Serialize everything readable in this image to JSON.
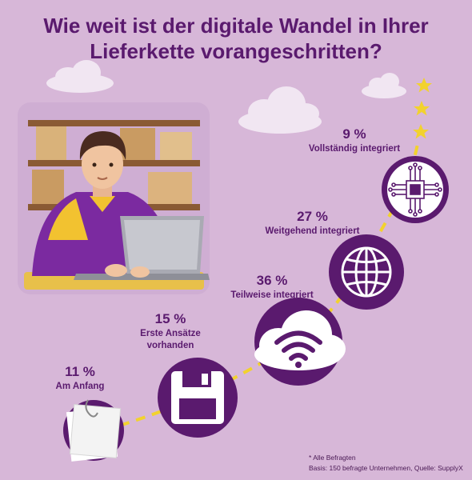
{
  "title_lines": [
    "Wie weit ist der digitale Wandel in Ihrer",
    "Lieferkette vorangeschritten?"
  ],
  "colors": {
    "background": "#d7b7d8",
    "accent": "#5a1a6e",
    "path": "#f2d22e",
    "stars": "#f2d22e"
  },
  "chart_data": {
    "type": "infographic-steps",
    "unit": "%",
    "categories": [
      "Am Anfang",
      "Erste Ansätze vorhanden",
      "Teilweise integriert",
      "Weitgehend integriert",
      "Vollständig integriert"
    ],
    "values": [
      11,
      15,
      36,
      27,
      9
    ],
    "icons": [
      "papers-icon",
      "floppy-disk-icon",
      "wifi-cloud-icon",
      "globe-icon",
      "chip-icon"
    ]
  },
  "stages": [
    {
      "pct": "11 %",
      "label_lines": [
        "Am Anfang"
      ]
    },
    {
      "pct": "15 %",
      "label_lines": [
        "Erste Ansätze",
        "vorhanden"
      ]
    },
    {
      "pct": "36 %",
      "label_lines": [
        "Teilweise integriert"
      ]
    },
    {
      "pct": "27 %",
      "label_lines": [
        "Weitgehend integriert"
      ]
    },
    {
      "pct": "9 %",
      "label_lines": [
        "Vollständig integriert"
      ]
    }
  ],
  "footnote_lines": [
    "* Alle Befragten",
    "Basis: 150 befragte Unternehmen, Quelle: SupplyX"
  ]
}
